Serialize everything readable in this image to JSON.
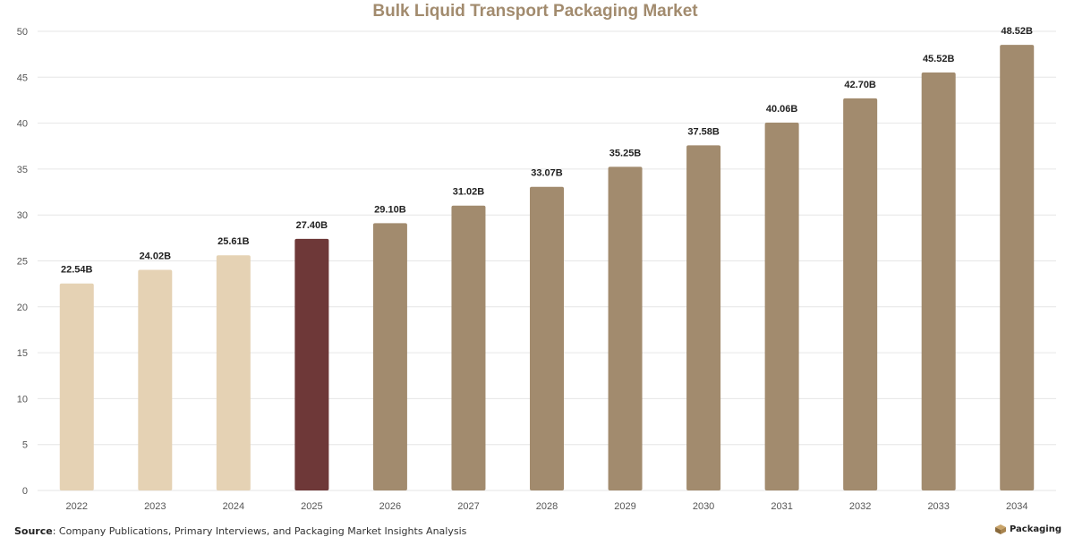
{
  "chart_data": {
    "type": "bar",
    "title": "Bulk Liquid Transport Packaging Market",
    "categories": [
      "2022",
      "2023",
      "2024",
      "2025",
      "2026",
      "2027",
      "2028",
      "2029",
      "2030",
      "2031",
      "2032",
      "2033",
      "2034"
    ],
    "values": [
      22.54,
      24.02,
      25.61,
      27.4,
      29.1,
      31.02,
      33.07,
      35.25,
      37.58,
      40.06,
      42.7,
      45.52,
      48.52
    ],
    "data_labels": [
      "22.54B",
      "24.02B",
      "25.61B",
      "27.40B",
      "29.10B",
      "31.02B",
      "33.07B",
      "35.25B",
      "37.58B",
      "40.06B",
      "42.70B",
      "45.52B",
      "48.52B"
    ],
    "ylim": [
      0,
      50
    ],
    "yticks": [
      0,
      5,
      10,
      15,
      20,
      25,
      30,
      35,
      40,
      45,
      50
    ],
    "xlabel": "",
    "ylabel": "",
    "grid": "horizontal",
    "legend": "none",
    "bar_colors": [
      "#e5d2b4",
      "#e5d2b4",
      "#e5d2b4",
      "#6e3838",
      "#a28b6e",
      "#a28b6e",
      "#a28b6e",
      "#a28b6e",
      "#a28b6e",
      "#a28b6e",
      "#a28b6e",
      "#a28b6e",
      "#a28b6e"
    ],
    "colors": {
      "title": "#a28b6e",
      "grid": "#e6e6e6",
      "axis_text": "#555555",
      "label_text": "#222222"
    }
  },
  "footer": {
    "source_label": "Source",
    "source_text": ": Company Publications, Primary Interviews, and Packaging Market Insights Analysis",
    "brand": "Packaging",
    "brand_icon": "box-icon"
  }
}
